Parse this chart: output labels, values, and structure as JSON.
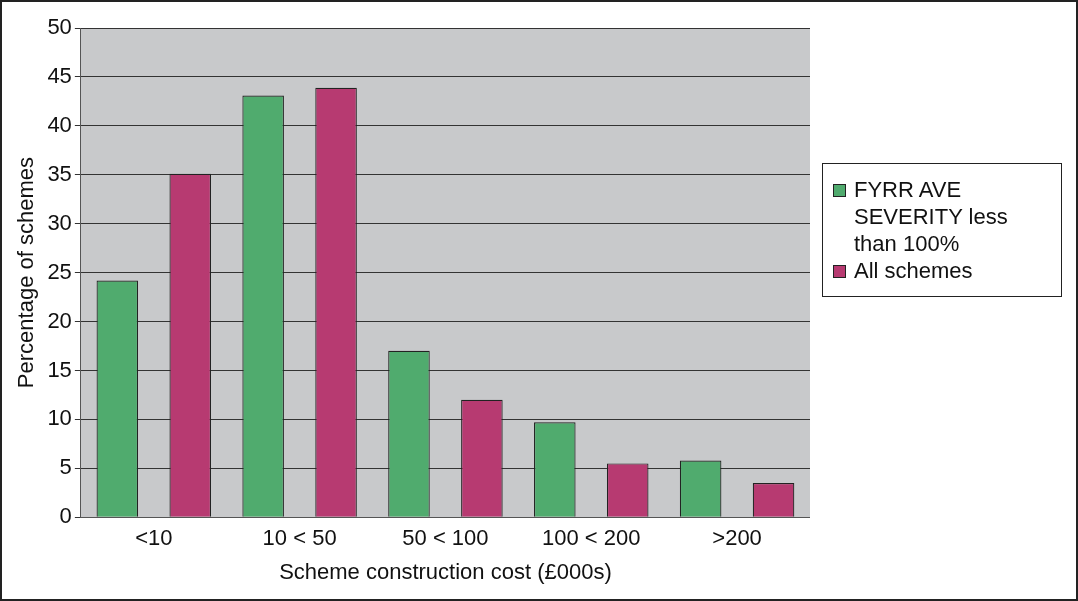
{
  "chart_data": {
    "type": "bar",
    "xlabel": "Scheme construction cost (£000s)",
    "ylabel": "Percentage of schemes",
    "categories": [
      "<10",
      "10 < 50",
      "50 < 100",
      "100 < 200",
      ">200"
    ],
    "series": [
      {
        "name": "FYRR AVE SEVERITY less than 100%",
        "color": "#50ab6e",
        "values": [
          24.2,
          43.1,
          17.0,
          9.7,
          5.8
        ]
      },
      {
        "name": "All schemes",
        "color": "#b73a71",
        "values": [
          35.1,
          43.9,
          12.0,
          5.5,
          3.5
        ]
      }
    ],
    "ylim": [
      0,
      50
    ],
    "yticks": [
      0,
      5,
      10,
      15,
      20,
      25,
      30,
      35,
      40,
      45,
      50
    ],
    "grid": "y",
    "legend": "right"
  }
}
